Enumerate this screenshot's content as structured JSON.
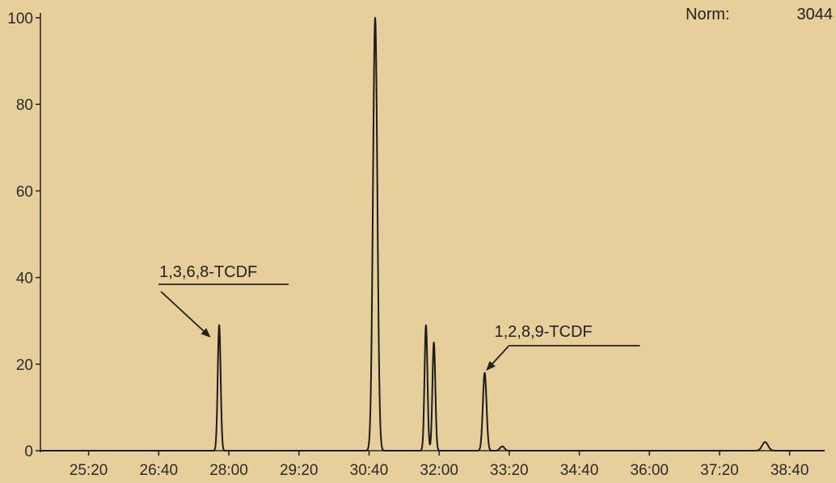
{
  "chart_data": {
    "type": "line",
    "norm_label": "Norm:",
    "norm_value": "3044",
    "xlabel": "",
    "ylabel": "",
    "ylim": [
      0,
      100
    ],
    "y_ticks": [
      0,
      20,
      40,
      60,
      80,
      100
    ],
    "y_tick_labels": [
      "0",
      "20",
      "40",
      "60",
      "80",
      "100"
    ],
    "x_range": [
      "24:25",
      "39:20"
    ],
    "x_ticks": [
      "25:20",
      "26:40",
      "28:00",
      "29:20",
      "30:40",
      "32:00",
      "33:20",
      "34:40",
      "36:00",
      "37:20",
      "38:40"
    ],
    "peaks": [
      {
        "t": "27:49",
        "value": 29,
        "width_s": 4
      },
      {
        "t": "30:47",
        "value": 100,
        "width_s": 6
      },
      {
        "t": "31:45",
        "value": 29,
        "width_s": 4
      },
      {
        "t": "31:54",
        "value": 25,
        "width_s": 4
      },
      {
        "t": "32:52",
        "value": 18,
        "width_s": 5
      },
      {
        "t": "33:12",
        "value": 1,
        "width_s": 6
      },
      {
        "t": "38:12",
        "value": 2,
        "width_s": 8
      }
    ],
    "annotations": [
      {
        "label": "1,3,6,8-TCDF",
        "peak_t": "27:49",
        "peak_value": 29
      },
      {
        "label": "1,2,8,9-TCDF",
        "peak_t": "32:52",
        "peak_value": 18
      }
    ]
  }
}
